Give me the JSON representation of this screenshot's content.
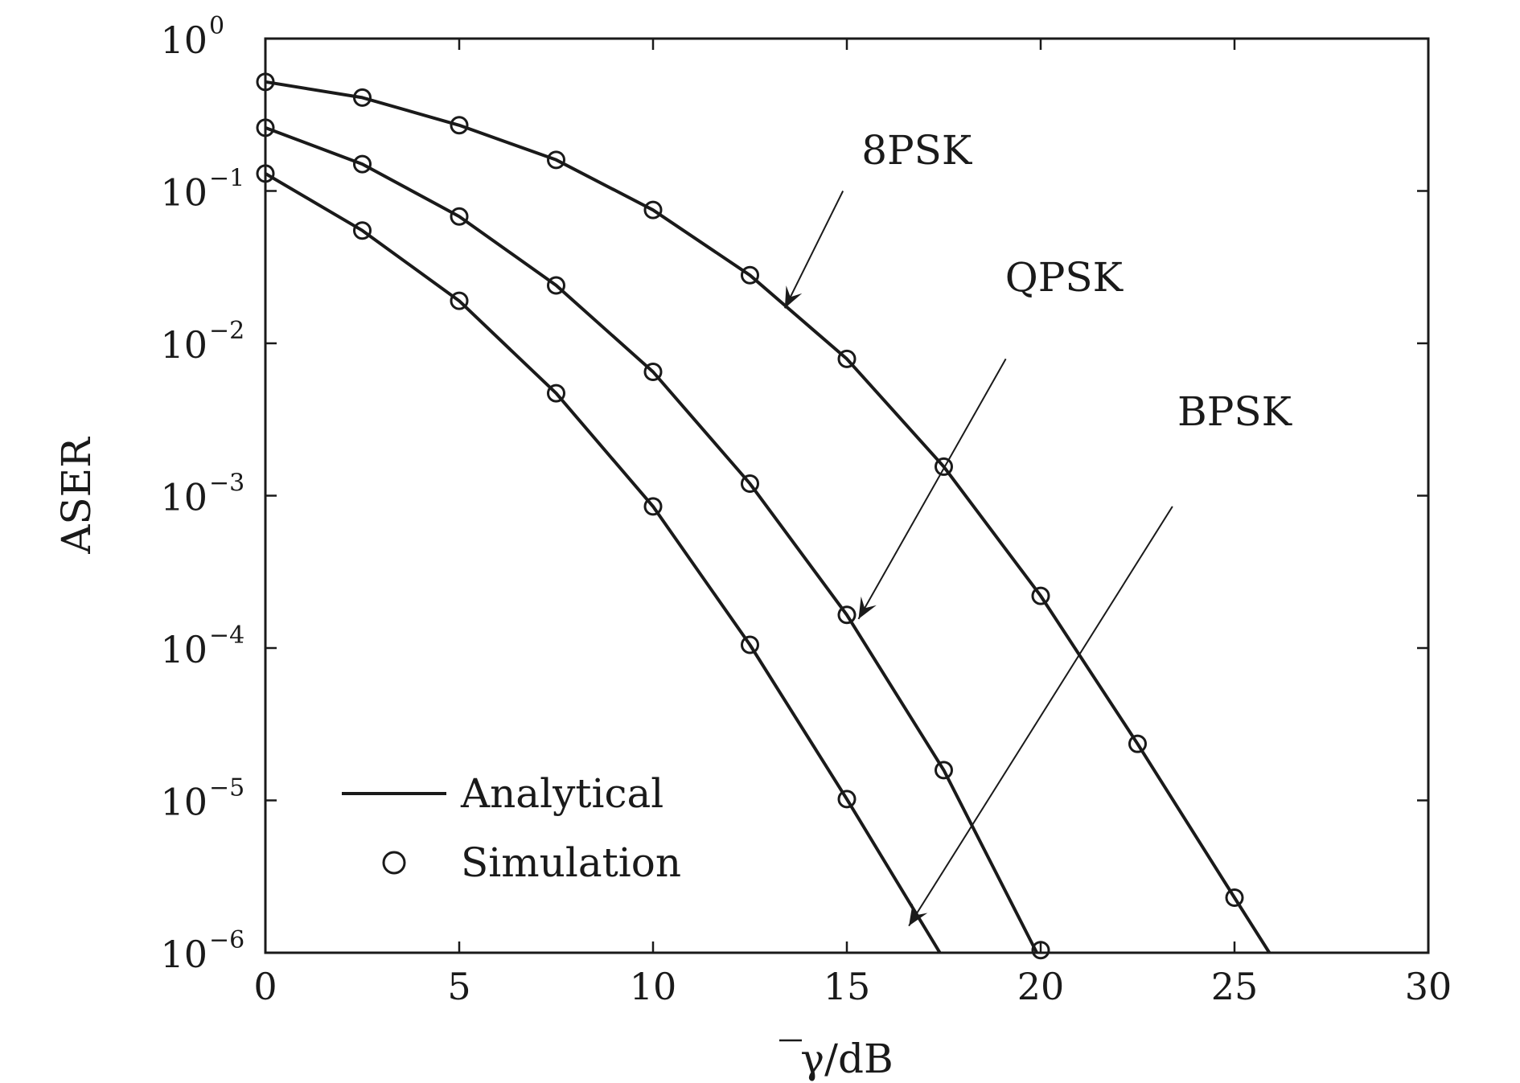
{
  "chart_data": {
    "type": "line",
    "title": "",
    "xlabel": "γ/dB",
    "xlabel_overline": true,
    "ylabel": "ASER",
    "xlim": [
      0,
      30
    ],
    "ylim": [
      1e-06,
      1
    ],
    "yscale": "log",
    "grid": false,
    "xticks": [
      0,
      5,
      10,
      15,
      20,
      25,
      30
    ],
    "xtick_labels": [
      "0",
      "5",
      "10",
      "15",
      "20",
      "25",
      "30"
    ],
    "yticks": [
      {
        "base": "10",
        "exp": "0",
        "value": 1
      },
      {
        "base": "10",
        "exp": "−1",
        "value": 0.1
      },
      {
        "base": "10",
        "exp": "−2",
        "value": 0.01
      },
      {
        "base": "10",
        "exp": "−3",
        "value": 0.001
      },
      {
        "base": "10",
        "exp": "−4",
        "value": 0.0001
      },
      {
        "base": "10",
        "exp": "−5",
        "value": 1e-05
      },
      {
        "base": "10",
        "exp": "−6",
        "value": 1e-06
      }
    ],
    "legend": {
      "position": "bottom-left",
      "entries": [
        {
          "label": "Analytical",
          "marker": "line"
        },
        {
          "label": "Simulation",
          "marker": "circle"
        }
      ]
    },
    "series": [
      {
        "name": "8PSK",
        "line_x": [
          0,
          2.5,
          5,
          7.5,
          10,
          12.5,
          15,
          17.5,
          20,
          22.5,
          25,
          25.9
        ],
        "line_y": [
          0.52,
          0.41,
          0.27,
          0.16,
          0.075,
          0.028,
          0.0079,
          0.00155,
          0.00022,
          2.35e-05,
          2.3e-06,
          1e-06
        ],
        "sim_x": [
          0,
          2.5,
          5,
          7.5,
          10,
          12.5,
          15,
          17.5,
          20,
          22.5,
          25
        ],
        "sim_y": [
          0.52,
          0.41,
          0.27,
          0.16,
          0.075,
          0.028,
          0.0079,
          0.00155,
          0.00022,
          2.35e-05,
          2.3e-06
        ]
      },
      {
        "name": "QPSK",
        "line_x": [
          0,
          2.5,
          5,
          7.5,
          10,
          12.5,
          15,
          17.5,
          19.9
        ],
        "line_y": [
          0.26,
          0.15,
          0.068,
          0.024,
          0.0065,
          0.0012,
          0.000165,
          1.58e-05,
          1e-06
        ],
        "sim_x": [
          0,
          2.5,
          5,
          7.5,
          10,
          12.5,
          15,
          17.5,
          20
        ],
        "sim_y": [
          0.26,
          0.15,
          0.068,
          0.024,
          0.0065,
          0.0012,
          0.000165,
          1.58e-05,
          1.04e-06
        ]
      },
      {
        "name": "BPSK",
        "line_x": [
          0,
          2.5,
          5,
          7.5,
          10,
          12.5,
          15,
          17.4
        ],
        "line_y": [
          0.13,
          0.055,
          0.019,
          0.0047,
          0.00085,
          0.000105,
          1.02e-05,
          1e-06
        ],
        "sim_x": [
          0,
          2.5,
          5,
          7.5,
          10,
          12.5,
          15
        ],
        "sim_y": [
          0.13,
          0.055,
          0.019,
          0.0047,
          0.00085,
          0.000105,
          1.02e-05
        ]
      }
    ],
    "annotations": [
      {
        "text": "8PSK",
        "series": "8PSK",
        "text_x": 16.8,
        "text_y": 0.15,
        "arrow_from": [
          14.9,
          0.1
        ],
        "arrow_to": [
          13.4,
          0.017
        ]
      },
      {
        "text": "QPSK",
        "series": "QPSK",
        "text_x": 20.6,
        "text_y": 0.022,
        "arrow_from": [
          19.1,
          0.0079
        ],
        "arrow_to": [
          15.3,
          0.000155
        ]
      },
      {
        "text": "BPSK",
        "series": "BPSK",
        "text_x": 25,
        "text_y": 0.0029,
        "arrow_from": [
          23.4,
          0.00085
        ],
        "arrow_to": [
          16.6,
          1.5e-06
        ]
      }
    ]
  }
}
